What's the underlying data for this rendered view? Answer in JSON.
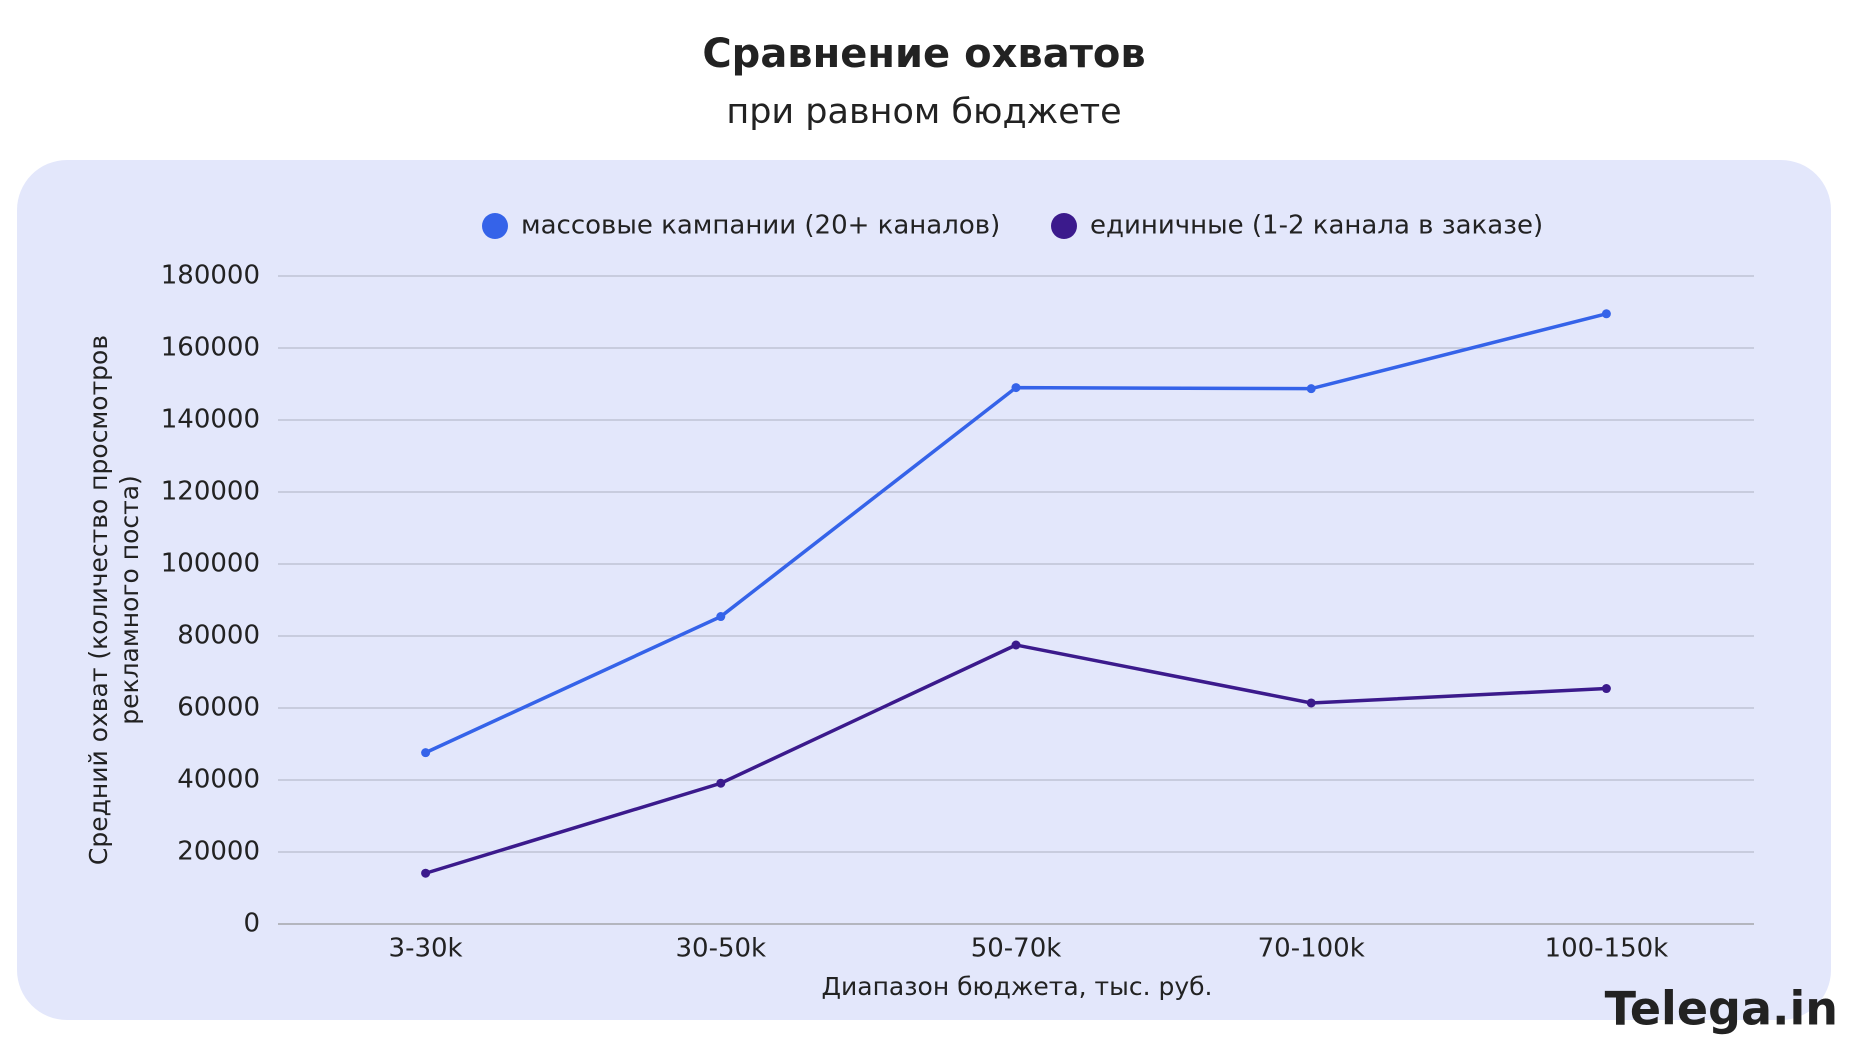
{
  "chart_data": {
    "type": "line",
    "title": "Сравнение охватов",
    "subtitle": "при равном бюджете",
    "xlabel": "Диапазон бюджета, тыс. руб.",
    "ylabel": [
      "Средний охват (количество просмотров",
      "рекламного поста)"
    ],
    "categories": [
      "3-30k",
      "30-50k",
      "50-70k",
      "70-100k",
      "100-150k"
    ],
    "series": [
      {
        "name": "массовые кампании (20+ каналов)",
        "color": "#3563e9",
        "values": [
          47600,
          85400,
          149000,
          148700,
          169500
        ]
      },
      {
        "name": "единичные (1-2 канала в заказе)",
        "color": "#3b1a8c",
        "values": [
          14100,
          39100,
          77500,
          61400,
          65400
        ]
      }
    ],
    "ylim": [
      0,
      180000
    ],
    "yticks": [
      0,
      20000,
      40000,
      60000,
      80000,
      100000,
      120000,
      140000,
      160000,
      180000
    ],
    "grid": true,
    "legend": "top"
  },
  "logo": "Telega.in"
}
